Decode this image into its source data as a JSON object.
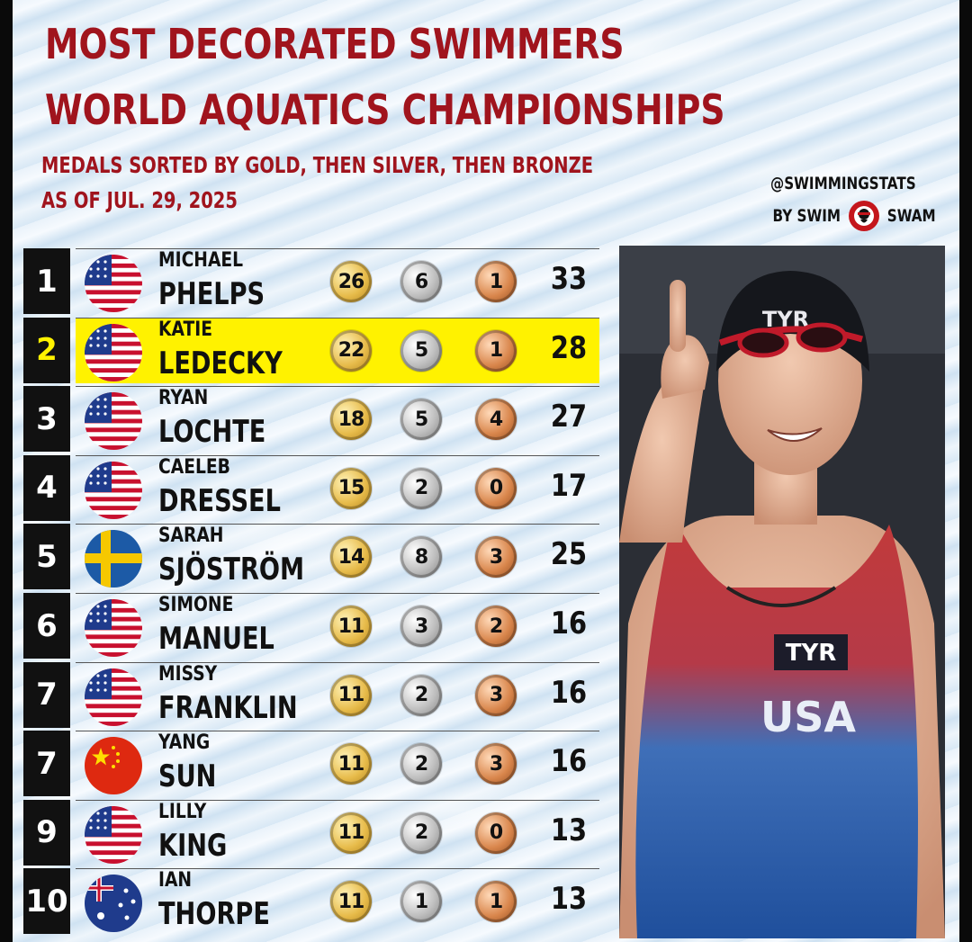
{
  "title_line1": "MOST DECORATED SWIMMERS",
  "title_line2": "WORLD AQUATICS CHAMPIONSHIPS",
  "subtitle_line1": "MEDALS SORTED BY GOLD, THEN SILVER, THEN BRONZE",
  "subtitle_line2": "AS OF JUL. 29, 2025",
  "credit": {
    "handle": "@SWIMMINGSTATS",
    "by": "BY SWIM",
    "brand": "SWAM"
  },
  "colors": {
    "title_red": "#a0141d",
    "highlight_yellow": "#fff200",
    "rank_box": "#111111"
  },
  "rows": [
    {
      "rank": "1",
      "first": "MICHAEL",
      "last": "PHELPS",
      "flag": "usa-flag",
      "gold": "26",
      "silver": "6",
      "bronze": "1",
      "total": "33",
      "highlight": false
    },
    {
      "rank": "2",
      "first": "KATIE",
      "last": "LEDECKY",
      "flag": "usa-flag",
      "gold": "22",
      "silver": "5",
      "bronze": "1",
      "total": "28",
      "highlight": true
    },
    {
      "rank": "3",
      "first": "RYAN",
      "last": "LOCHTE",
      "flag": "usa-flag",
      "gold": "18",
      "silver": "5",
      "bronze": "4",
      "total": "27",
      "highlight": false
    },
    {
      "rank": "4",
      "first": "CAELEB",
      "last": "DRESSEL",
      "flag": "usa-flag",
      "gold": "15",
      "silver": "2",
      "bronze": "0",
      "total": "17",
      "highlight": false
    },
    {
      "rank": "5",
      "first": "SARAH",
      "last": "SJÖSTRÖM",
      "flag": "sweden-flag",
      "gold": "14",
      "silver": "8",
      "bronze": "3",
      "total": "25",
      "highlight": false
    },
    {
      "rank": "6",
      "first": "SIMONE",
      "last": "MANUEL",
      "flag": "usa-flag",
      "gold": "11",
      "silver": "3",
      "bronze": "2",
      "total": "16",
      "highlight": false
    },
    {
      "rank": "7",
      "first": "MISSY",
      "last": "FRANKLIN",
      "flag": "usa-flag",
      "gold": "11",
      "silver": "2",
      "bronze": "3",
      "total": "16",
      "highlight": false
    },
    {
      "rank": "7",
      "first": "YANG",
      "last": "SUN",
      "flag": "china-flag",
      "gold": "11",
      "silver": "2",
      "bronze": "3",
      "total": "16",
      "highlight": false
    },
    {
      "rank": "9",
      "first": "LILLY",
      "last": "KING",
      "flag": "usa-flag",
      "gold": "11",
      "silver": "2",
      "bronze": "0",
      "total": "13",
      "highlight": false
    },
    {
      "rank": "10",
      "first": "IAN",
      "last": "THORPE",
      "flag": "australia-flag",
      "gold": "11",
      "silver": "1",
      "bronze": "1",
      "total": "13",
      "highlight": false
    }
  ],
  "photo": {
    "cap_logo": "TYR",
    "suit_logo": "TYR",
    "suit_text": "USA"
  }
}
